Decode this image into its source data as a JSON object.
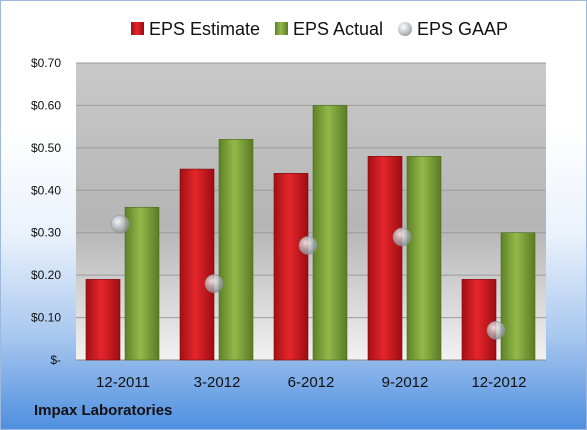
{
  "company": "Impax Laboratories",
  "colors": {
    "estimate": "#c9151b",
    "actual": "#7ea23a",
    "gaap": "#b8bcc2"
  },
  "chart_data": {
    "type": "bar",
    "categories": [
      "12-2011",
      "3-2012",
      "6-2012",
      "9-2012",
      "12-2012"
    ],
    "series": [
      {
        "name": "EPS Estimate",
        "type": "bar",
        "values": [
          0.19,
          0.45,
          0.44,
          0.48,
          0.19
        ]
      },
      {
        "name": "EPS Actual",
        "type": "bar",
        "values": [
          0.36,
          0.52,
          0.6,
          0.48,
          0.3
        ]
      },
      {
        "name": "EPS GAAP",
        "type": "scatter",
        "values": [
          0.32,
          0.18,
          0.27,
          0.29,
          0.07
        ]
      }
    ],
    "ylim": [
      0,
      0.7
    ],
    "yticks": [
      0,
      0.1,
      0.2,
      0.3,
      0.4,
      0.5,
      0.6,
      0.7
    ],
    "ytick_labels": [
      "$-",
      "$0.10",
      "$0.20",
      "$0.30",
      "$0.40",
      "$0.50",
      "$0.60",
      "$0.70"
    ],
    "grid": true,
    "legend": "top"
  }
}
